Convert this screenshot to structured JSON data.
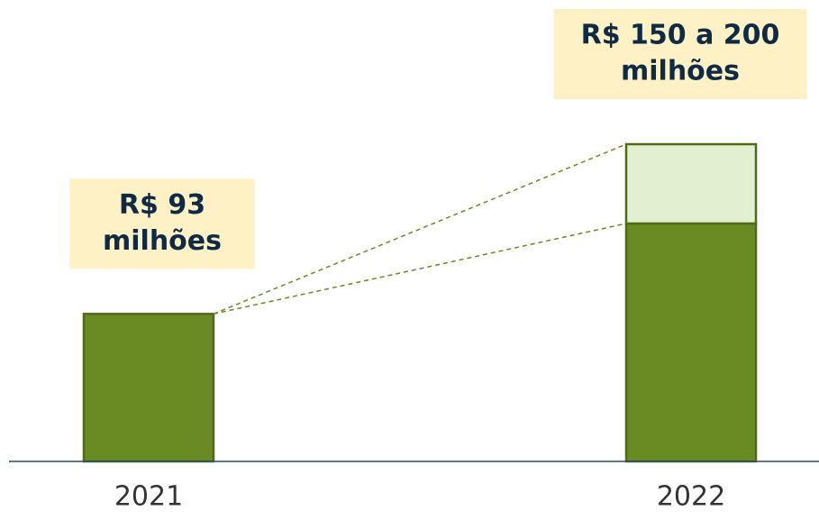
{
  "chart_data": {
    "type": "stacked-bar",
    "categories": [
      "2021",
      "2022"
    ],
    "series": [
      {
        "color": "#6a8a23",
        "values": [
          93,
          150
        ]
      },
      {
        "color": "#e3f0d0",
        "values": [
          null,
          50
        ]
      }
    ],
    "annotations": [
      [
        "R$ 93",
        "milhões"
      ],
      [
        "R$ 150 a 200",
        "milhões"
      ]
    ]
  }
}
